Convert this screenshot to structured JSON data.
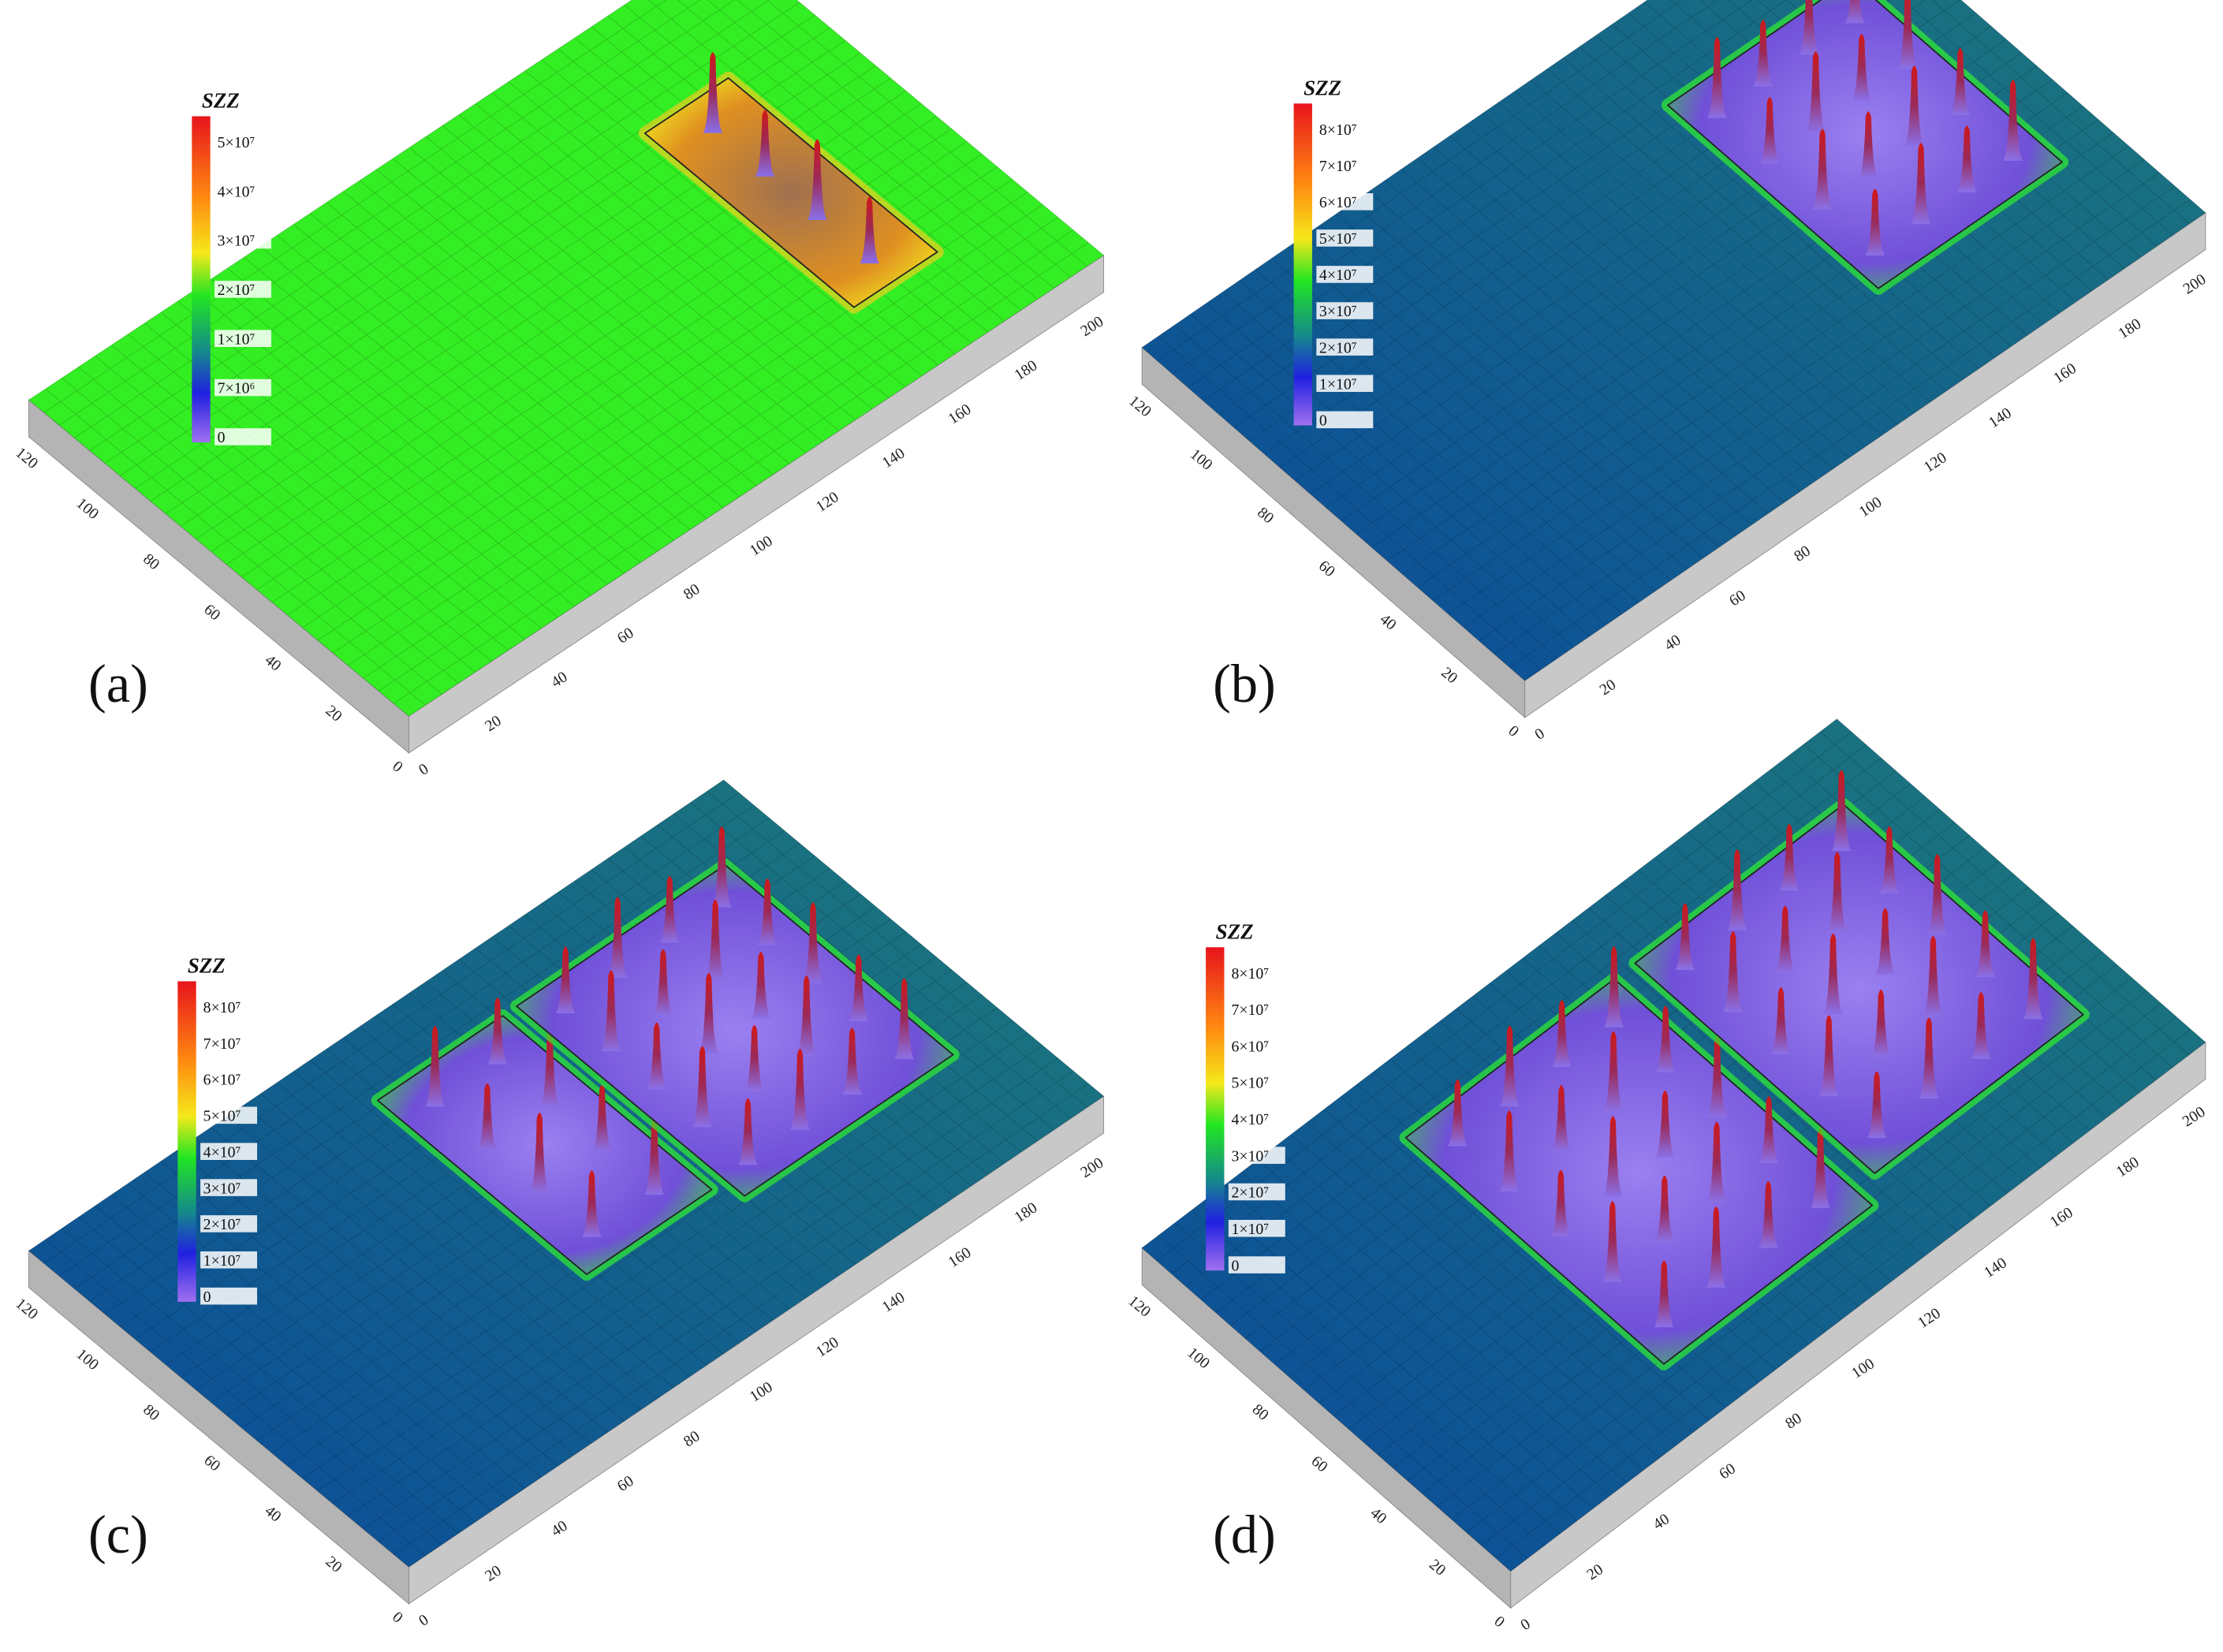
{
  "figure": {
    "panels": [
      {
        "label": "(a)",
        "colorbar": {
          "title": "SZZ",
          "ticks": [
            "5×10⁷",
            "4×10⁷",
            "3×10⁷",
            "2×10⁷",
            "1×10⁷",
            "7×10⁶",
            "0"
          ]
        },
        "x_ticks": [
          0,
          20,
          40,
          60,
          80,
          100,
          120,
          140,
          160,
          180,
          200
        ],
        "y_ticks": [
          0,
          20,
          40,
          60,
          80,
          100,
          120
        ]
      },
      {
        "label": "(b)",
        "colorbar": {
          "title": "SZZ",
          "ticks": [
            "8×10⁷",
            "7×10⁷",
            "6×10⁷",
            "5×10⁷",
            "4×10⁷",
            "3×10⁷",
            "2×10⁷",
            "1×10⁷",
            "0"
          ]
        },
        "x_ticks": [
          0,
          20,
          40,
          60,
          80,
          100,
          120,
          140,
          160,
          180,
          200
        ],
        "y_ticks": [
          0,
          20,
          40,
          60,
          80,
          100,
          120
        ]
      },
      {
        "label": "(c)",
        "colorbar": {
          "title": "SZZ",
          "ticks": [
            "8×10⁷",
            "7×10⁷",
            "6×10⁷",
            "5×10⁷",
            "4×10⁷",
            "3×10⁷",
            "2×10⁷",
            "1×10⁷",
            "0"
          ]
        },
        "x_ticks": [
          0,
          20,
          40,
          60,
          80,
          100,
          120,
          140,
          160,
          180,
          200
        ],
        "y_ticks": [
          0,
          20,
          40,
          60,
          80,
          100,
          120
        ]
      },
      {
        "label": "(d)",
        "colorbar": {
          "title": "SZZ",
          "ticks": [
            "8×10⁷",
            "7×10⁷",
            "6×10⁷",
            "5×10⁷",
            "4×10⁷",
            "3×10⁷",
            "2×10⁷",
            "1×10⁷",
            "0"
          ]
        },
        "x_ticks": [
          0,
          20,
          40,
          60,
          80,
          100,
          120,
          140,
          160,
          180,
          200
        ],
        "y_ticks": [
          0,
          20,
          40,
          60,
          80,
          100,
          120
        ]
      }
    ]
  }
}
